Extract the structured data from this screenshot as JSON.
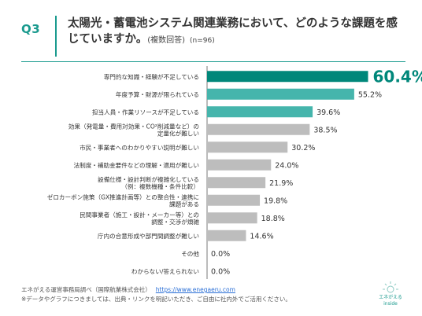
{
  "header": {
    "q_label": "Q3",
    "title": "太陽光・蓄電池システム関連業務において、どのような課題を感じていますか。",
    "note": "(複数回答)",
    "n": "(n=96)"
  },
  "colors": {
    "highlight": "#00877a",
    "accent": "#45b5ac",
    "bar": "#bdbdbd"
  },
  "chart_data": {
    "type": "bar",
    "orientation": "horizontal",
    "categories": [
      [
        "専門的な知識・経験が不足している"
      ],
      [
        "年度予算・財源が限られている"
      ],
      [
        "担当人員・作業リソースが不足している"
      ],
      [
        "効果（発電量・費用対効果・CO²削減量など）の",
        "定量化が難しい"
      ],
      [
        "市民・事業者へのわかりやすい説明が難しい"
      ],
      [
        "法制度・補助金要件などの理解・適用が難しい"
      ],
      [
        "設備仕様・設計判断が複雑化している",
        "（例：複数機種・条件比較）"
      ],
      [
        "ゼロカーボン施策（GX推進計画等）との整合性・連携に",
        "課題がある"
      ],
      [
        "民間事業者（施工・設計・メーカー等）との",
        "調整・交渉が煩雑"
      ],
      [
        "庁内の合意形成や部門間調整が難しい"
      ],
      [
        "その他"
      ],
      [
        "わからない/答えられない"
      ]
    ],
    "values": [
      60.4,
      55.2,
      39.6,
      38.5,
      30.2,
      24.0,
      21.9,
      19.8,
      18.8,
      14.6,
      0.0,
      0.0
    ],
    "value_labels": [
      "60.4%",
      "55.2%",
      "39.6%",
      "38.5%",
      "30.2%",
      "24.0%",
      "21.9%",
      "19.8%",
      "18.8%",
      "14.6%",
      "0.0%",
      "0.0%"
    ],
    "bar_colors": [
      "#00877a",
      "#45b5ac",
      "#45b5ac",
      "#bdbdbd",
      "#bdbdbd",
      "#bdbdbd",
      "#bdbdbd",
      "#bdbdbd",
      "#bdbdbd",
      "#bdbdbd",
      "#bdbdbd",
      "#bdbdbd"
    ],
    "xlim": [
      0,
      70
    ]
  },
  "footer": {
    "source": "エネがえる運営事務局調べ（国際航業株式会社）",
    "url": "https://www.enegaeru.com",
    "disclaimer": "※データやグラフにつきましては、出典・リンクを明記いただき、ご自由に社内外でご活用ください。"
  },
  "logo": {
    "name": "エネがえる",
    "sub": "inside"
  }
}
